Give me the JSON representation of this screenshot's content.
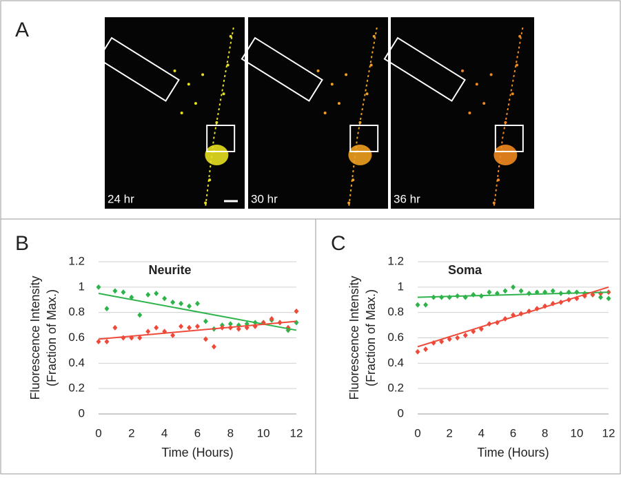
{
  "panel_a": {
    "label": "A",
    "captions": [
      "24 hr",
      "30 hr",
      "36 hr"
    ]
  },
  "chart_data": [
    {
      "type": "scatter",
      "panel_label": "B",
      "title": "Neurite",
      "ylabel": [
        "Fluorescence Intensity",
        "(Fraction of Max.)"
      ],
      "xlabel": "Time (Hours)",
      "xlim": [
        0,
        12
      ],
      "xticks": [
        0,
        2,
        4,
        6,
        8,
        10,
        12
      ],
      "ylim": [
        0,
        1.2
      ],
      "yticks": [
        0,
        0.2,
        0.4,
        0.6,
        0.8,
        1,
        1.2
      ],
      "grid": true,
      "x": [
        0,
        0.5,
        1,
        1.5,
        2,
        2.5,
        3,
        3.5,
        4,
        4.5,
        5,
        5.5,
        6,
        6.5,
        7,
        7.5,
        8,
        8.5,
        9,
        9.5,
        10,
        10.5,
        11,
        11.5,
        12
      ],
      "series": [
        {
          "color": "#2db34a",
          "values": [
            1.0,
            0.83,
            0.97,
            0.96,
            0.92,
            0.78,
            0.94,
            0.95,
            0.91,
            0.88,
            0.87,
            0.85,
            0.87,
            0.73,
            0.67,
            0.7,
            0.71,
            0.7,
            0.71,
            0.72,
            0.72,
            0.74,
            0.72,
            0.66,
            0.72
          ]
        },
        {
          "color": "#ee4a3a",
          "values": [
            0.57,
            0.57,
            0.68,
            0.6,
            0.6,
            0.6,
            0.65,
            0.68,
            0.65,
            0.62,
            0.69,
            0.68,
            0.69,
            0.59,
            0.53,
            0.68,
            0.68,
            0.67,
            0.68,
            0.69,
            0.72,
            0.75,
            0.72,
            0.68,
            0.81
          ]
        }
      ],
      "trendlines": [
        {
          "color": "#2db34a",
          "x": [
            0,
            12
          ],
          "values": [
            0.95,
            0.66
          ]
        },
        {
          "color": "#ee4a3a",
          "x": [
            0,
            12
          ],
          "values": [
            0.59,
            0.73
          ]
        }
      ]
    },
    {
      "type": "scatter",
      "panel_label": "C",
      "title": "Soma",
      "ylabel": [
        "Fluorescence Intensity",
        "(Fraction of Max.)"
      ],
      "xlabel": "Time (Hours)",
      "xlim": [
        0,
        12
      ],
      "xticks": [
        0,
        2,
        4,
        6,
        8,
        10,
        12
      ],
      "ylim": [
        0,
        1.2
      ],
      "yticks": [
        0,
        0.2,
        0.4,
        0.6,
        0.8,
        1,
        1.2
      ],
      "grid": true,
      "x": [
        0,
        0.5,
        1,
        1.5,
        2,
        2.5,
        3,
        3.5,
        4,
        4.5,
        5,
        5.5,
        6,
        6.5,
        7,
        7.5,
        8,
        8.5,
        9,
        9.5,
        10,
        10.5,
        11,
        11.5,
        12
      ],
      "series": [
        {
          "color": "#2db34a",
          "values": [
            0.86,
            0.86,
            0.92,
            0.92,
            0.92,
            0.93,
            0.92,
            0.94,
            0.93,
            0.96,
            0.95,
            0.97,
            1.0,
            0.97,
            0.95,
            0.96,
            0.96,
            0.97,
            0.95,
            0.96,
            0.96,
            0.95,
            0.94,
            0.92,
            0.91
          ]
        },
        {
          "color": "#ee4a3a",
          "values": [
            0.49,
            0.51,
            0.56,
            0.57,
            0.59,
            0.6,
            0.62,
            0.65,
            0.67,
            0.71,
            0.72,
            0.75,
            0.78,
            0.79,
            0.81,
            0.83,
            0.85,
            0.87,
            0.88,
            0.9,
            0.91,
            0.93,
            0.94,
            0.95,
            0.96
          ]
        }
      ],
      "trendlines": [
        {
          "color": "#2db34a",
          "x": [
            0,
            12
          ],
          "values": [
            0.92,
            0.96
          ]
        },
        {
          "color": "#ee4a3a",
          "x": [
            0,
            12
          ],
          "values": [
            0.53,
            1.0
          ]
        }
      ]
    }
  ]
}
